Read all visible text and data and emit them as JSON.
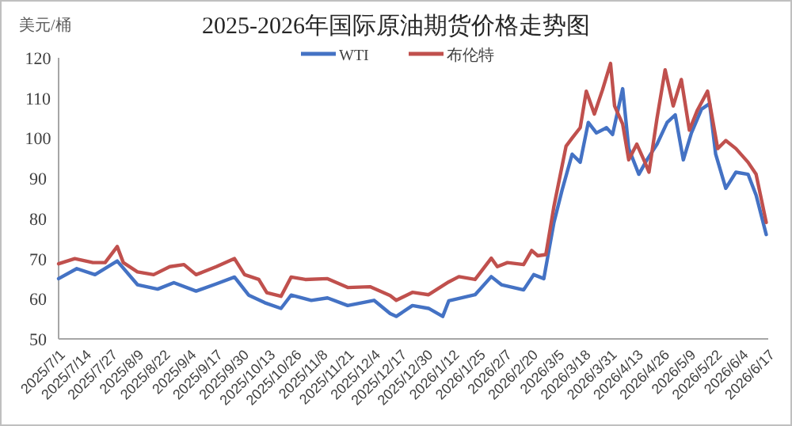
{
  "chart_data": {
    "type": "line",
    "title": "2025-2026年国际原油期货价格走势图",
    "ylabel": "美元/桶",
    "xlim": [
      "2025-07-01",
      "2026-06-17"
    ],
    "xticks": [
      {
        "value": "2025-07-01",
        "label": "2025/7/1"
      },
      {
        "value": "2025-07-14",
        "label": "2025/7/14"
      },
      {
        "value": "2025-07-27",
        "label": "2025/7/27"
      },
      {
        "value": "2025-08-09",
        "label": "2025/8/9"
      },
      {
        "value": "2025-08-22",
        "label": "2025/8/22"
      },
      {
        "value": "2025-09-04",
        "label": "2025/9/4"
      },
      {
        "value": "2025-09-17",
        "label": "2025/9/17"
      },
      {
        "value": "2025-09-30",
        "label": "2025/9/30"
      },
      {
        "value": "2025-10-13",
        "label": "2025/10/13"
      },
      {
        "value": "2025-10-26",
        "label": "2025/10/26"
      },
      {
        "value": "2025-11-08",
        "label": "2025/11/8"
      },
      {
        "value": "2025-11-21",
        "label": "2025/11/21"
      },
      {
        "value": "2025-12-04",
        "label": "2025/12/4"
      },
      {
        "value": "2025-12-17",
        "label": "2025/12/17"
      },
      {
        "value": "2025-12-30",
        "label": "2025/12/30"
      },
      {
        "value": "2026-01-12",
        "label": "2026/1/12"
      },
      {
        "value": "2026-01-25",
        "label": "2026/1/25"
      },
      {
        "value": "2026-02-07",
        "label": "2026/2/7"
      },
      {
        "value": "2026-02-20",
        "label": "2026/2/20"
      },
      {
        "value": "2026-03-05",
        "label": "2026/3/5"
      },
      {
        "value": "2026-03-18",
        "label": "2026/3/18"
      },
      {
        "value": "2026-03-31",
        "label": "2026/3/31"
      },
      {
        "value": "2026-04-13",
        "label": "2026/4/13"
      },
      {
        "value": "2026-04-26",
        "label": "2026/4/26"
      },
      {
        "value": "2026-05-09",
        "label": "2026/5/9"
      },
      {
        "value": "2026-05-22",
        "label": "2026/5/22"
      },
      {
        "value": "2026-06-04",
        "label": "2026/6/4"
      },
      {
        "value": "2026-06-17",
        "label": "2026/6/17"
      }
    ],
    "ylim": [
      50,
      120
    ],
    "yticks": [
      50,
      60,
      70,
      80,
      90,
      100,
      110,
      120
    ],
    "grid": false,
    "legend": "top",
    "marker": "none",
    "line_style": "solid",
    "series": [
      {
        "name": "WTI",
        "color": "#4472c4",
        "x": [
          "2025-07-01",
          "2025-07-10",
          "2025-07-19",
          "2025-07-30",
          "2025-08-09",
          "2025-08-19",
          "2025-08-27",
          "2025-09-07",
          "2025-09-17",
          "2025-09-26",
          "2025-10-03",
          "2025-10-11",
          "2025-10-19",
          "2025-10-24",
          "2025-11-03",
          "2025-11-11",
          "2025-11-21",
          "2025-12-04",
          "2025-12-12",
          "2025-12-15",
          "2025-12-23",
          "2025-12-31",
          "2026-01-07",
          "2026-01-10",
          "2026-01-23",
          "2026-01-31",
          "2026-02-05",
          "2026-02-16",
          "2026-02-21",
          "2026-02-26",
          "2026-03-03",
          "2026-03-07",
          "2026-03-12",
          "2026-03-16",
          "2026-03-20",
          "2026-03-24",
          "2026-03-29",
          "2026-04-01",
          "2026-04-06",
          "2026-04-09",
          "2026-04-14",
          "2026-04-18",
          "2026-04-23",
          "2026-04-28",
          "2026-05-02",
          "2026-05-06",
          "2026-05-10",
          "2026-05-15",
          "2026-05-19",
          "2026-05-22",
          "2026-05-27",
          "2026-06-01",
          "2026-06-07",
          "2026-06-11",
          "2026-06-16"
        ],
        "values": [
          65,
          67.5,
          66,
          69.4,
          63.5,
          62.4,
          64,
          61.9,
          63.7,
          65.4,
          60.9,
          59,
          57.6,
          60.9,
          59.6,
          60.2,
          58.3,
          59.6,
          56.3,
          55.6,
          58.3,
          57.6,
          55.6,
          59.5,
          61,
          65.5,
          63.5,
          62.2,
          66,
          65,
          79,
          87,
          96,
          94,
          103.9,
          101.3,
          102.6,
          100.9,
          112.3,
          97.4,
          91,
          94.6,
          98.5,
          103.9,
          105.8,
          94.6,
          101.3,
          107.2,
          108.6,
          96,
          87.5,
          91.5,
          91,
          85.8,
          76
        ]
      },
      {
        "name": "布伦特",
        "color": "#c0504d",
        "x": [
          "2025-07-01",
          "2025-07-09",
          "2025-07-18",
          "2025-07-24",
          "2025-07-30",
          "2025-08-02",
          "2025-08-09",
          "2025-08-17",
          "2025-08-25",
          "2025-09-01",
          "2025-09-07",
          "2025-09-17",
          "2025-09-26",
          "2025-10-01",
          "2025-10-08",
          "2025-10-12",
          "2025-10-19",
          "2025-10-24",
          "2025-10-31",
          "2025-11-11",
          "2025-11-21",
          "2025-12-02",
          "2025-12-12",
          "2025-12-15",
          "2025-12-23",
          "2025-12-31",
          "2026-01-10",
          "2026-01-15",
          "2026-01-23",
          "2026-01-31",
          "2026-02-03",
          "2026-02-08",
          "2026-02-16",
          "2026-02-20",
          "2026-02-23",
          "2026-02-27",
          "2026-03-03",
          "2026-03-09",
          "2026-03-12",
          "2026-03-16",
          "2026-03-19",
          "2026-03-23",
          "2026-03-27",
          "2026-03-31",
          "2026-04-02",
          "2026-04-06",
          "2026-04-09",
          "2026-04-13",
          "2026-04-17",
          "2026-04-19",
          "2026-04-23",
          "2026-04-27",
          "2026-05-01",
          "2026-05-05",
          "2026-05-09",
          "2026-05-13",
          "2026-05-18",
          "2026-05-23",
          "2026-05-27",
          "2026-06-01",
          "2026-06-07",
          "2026-06-11",
          "2026-06-16"
        ],
        "values": [
          68.7,
          70,
          69,
          69,
          73,
          69,
          66.7,
          66,
          68,
          68.5,
          66,
          68,
          70,
          66,
          64.8,
          61.5,
          60.6,
          65.4,
          64.8,
          65,
          62.8,
          63,
          60.8,
          59.6,
          61.6,
          61,
          64.2,
          65.5,
          64.8,
          70.1,
          68,
          69,
          68.5,
          72,
          70.7,
          71,
          83,
          98,
          100,
          102.6,
          111.7,
          106,
          112,
          118.6,
          108,
          103.5,
          94.6,
          98.5,
          94,
          91.5,
          105,
          117,
          108,
          114.6,
          102,
          107,
          111.7,
          97.4,
          99.4,
          97.4,
          94,
          91,
          79
        ]
      }
    ]
  }
}
